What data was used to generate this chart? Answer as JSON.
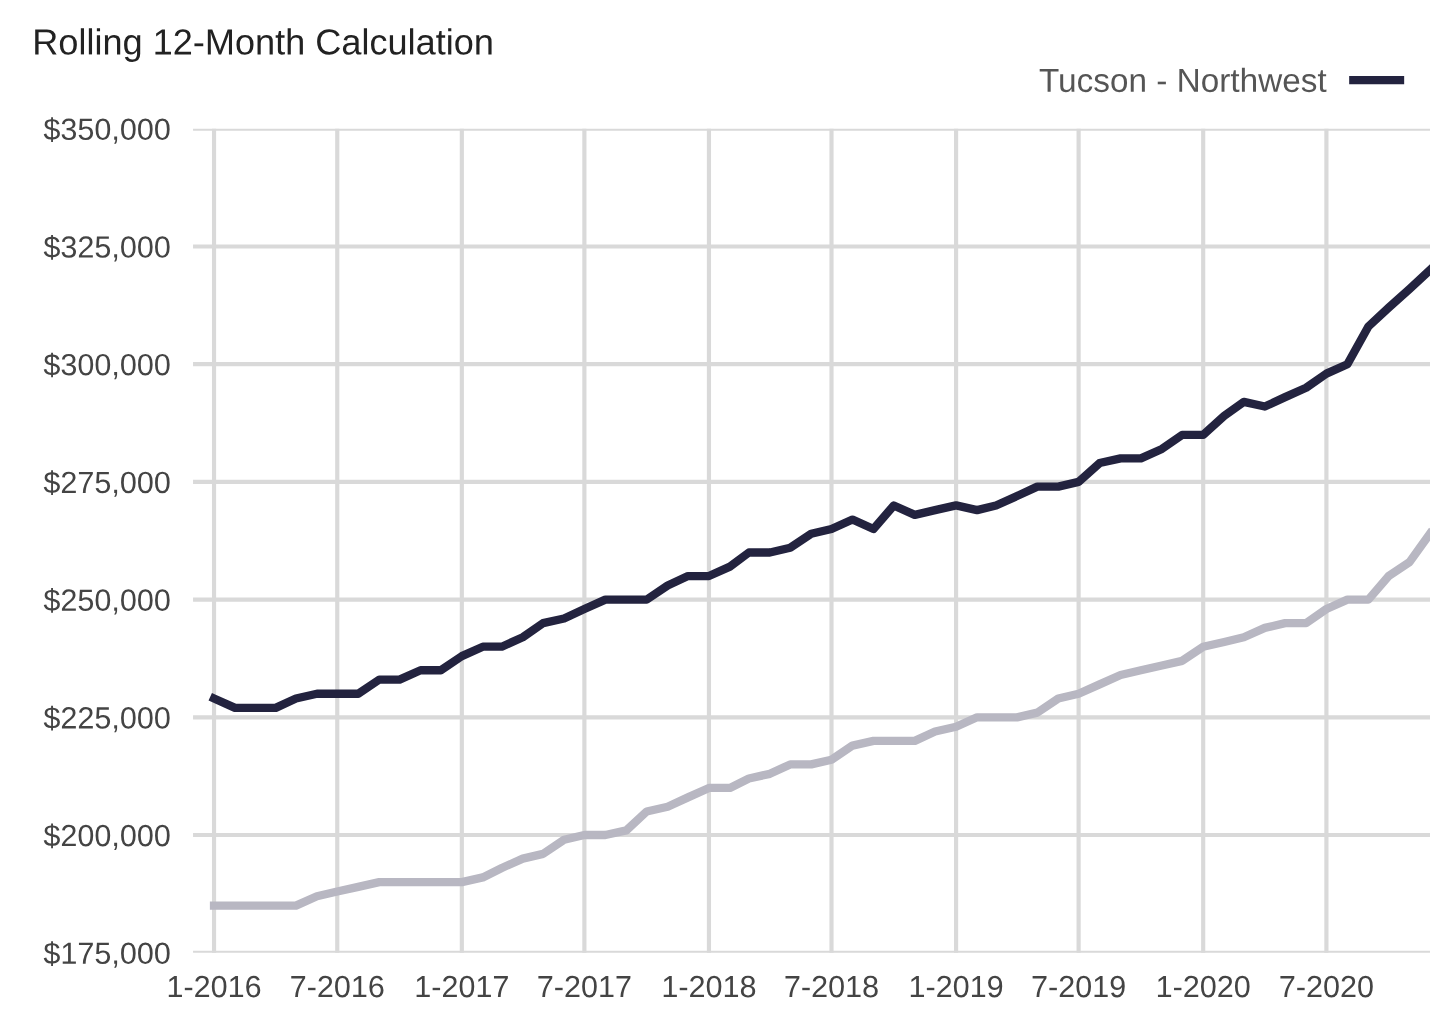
{
  "chart_data": {
    "type": "line",
    "title": "Rolling 12-Month Calculation",
    "x": [
      "2016-01",
      "2016-02",
      "2016-03",
      "2016-04",
      "2016-05",
      "2016-06",
      "2016-07",
      "2016-08",
      "2016-09",
      "2016-10",
      "2016-11",
      "2016-12",
      "2017-01",
      "2017-02",
      "2017-03",
      "2017-04",
      "2017-05",
      "2017-06",
      "2017-07",
      "2017-08",
      "2017-09",
      "2017-10",
      "2017-11",
      "2017-12",
      "2018-01",
      "2018-02",
      "2018-03",
      "2018-04",
      "2018-05",
      "2018-06",
      "2018-07",
      "2018-08",
      "2018-09",
      "2018-10",
      "2018-11",
      "2018-12",
      "2019-01",
      "2019-02",
      "2019-03",
      "2019-04",
      "2019-05",
      "2019-06",
      "2019-07",
      "2019-08",
      "2019-09",
      "2019-10",
      "2019-11",
      "2019-12",
      "2020-01",
      "2020-02",
      "2020-03",
      "2020-04",
      "2020-05",
      "2020-06",
      "2020-07",
      "2020-08",
      "2020-09",
      "2020-10",
      "2020-11",
      "2020-12"
    ],
    "series": [
      {
        "color": "#b8b7c2",
        "values": [
          185000,
          185000,
          185000,
          185000,
          185000,
          187000,
          188000,
          189000,
          190000,
          190000,
          190000,
          190000,
          190000,
          191000,
          193000,
          195000,
          196000,
          199000,
          200000,
          200000,
          201000,
          205000,
          206000,
          208000,
          210000,
          210000,
          212000,
          213000,
          215000,
          215000,
          216000,
          219000,
          220000,
          220000,
          220000,
          222000,
          223000,
          225000,
          225000,
          225000,
          226000,
          229000,
          230000,
          232000,
          234000,
          235000,
          236000,
          237000,
          240000,
          241000,
          242000,
          244000,
          245000,
          245000,
          248000,
          250000,
          250000,
          255000,
          258000,
          264000
        ]
      },
      {
        "name": "Tucson - Northwest",
        "color": "#23233f",
        "values": [
          229000,
          227000,
          227000,
          227000,
          229000,
          230000,
          230000,
          230000,
          233000,
          233000,
          235000,
          235000,
          238000,
          240000,
          240000,
          242000,
          245000,
          246000,
          248000,
          250000,
          250000,
          250000,
          253000,
          255000,
          255000,
          257000,
          260000,
          260000,
          261000,
          264000,
          265000,
          267000,
          265000,
          270000,
          268000,
          269000,
          270000,
          269000,
          270000,
          272000,
          274000,
          274000,
          275000,
          279000,
          280000,
          280000,
          282000,
          285000,
          285000,
          289000,
          292000,
          291000,
          293000,
          295000,
          298000,
          300000,
          308000,
          312000,
          316000,
          320000
        ]
      }
    ],
    "xlim": [
      "2015-12",
      "2020-12"
    ],
    "xticks": [
      {
        "value": "2016-01",
        "label": "1-2016"
      },
      {
        "value": "2016-07",
        "label": "7-2016"
      },
      {
        "value": "2017-01",
        "label": "1-2017"
      },
      {
        "value": "2017-07",
        "label": "7-2017"
      },
      {
        "value": "2018-01",
        "label": "1-2018"
      },
      {
        "value": "2018-07",
        "label": "7-2018"
      },
      {
        "value": "2019-01",
        "label": "1-2019"
      },
      {
        "value": "2019-07",
        "label": "7-2019"
      },
      {
        "value": "2020-01",
        "label": "1-2020"
      },
      {
        "value": "2020-07",
        "label": "7-2020"
      }
    ],
    "ylim": [
      175000,
      350000
    ],
    "yticks": [
      {
        "value": 175000,
        "label": "$175,000"
      },
      {
        "value": 200000,
        "label": "$200,000"
      },
      {
        "value": 225000,
        "label": "$225,000"
      },
      {
        "value": 250000,
        "label": "$250,000"
      },
      {
        "value": 275000,
        "label": "$275,000"
      },
      {
        "value": 300000,
        "label": "$300,000"
      },
      {
        "value": 325000,
        "label": "$325,000"
      },
      {
        "value": 350000,
        "label": "$350,000"
      }
    ],
    "grid": true,
    "legend": "top right",
    "marker": "none",
    "line_style": "solid"
  }
}
